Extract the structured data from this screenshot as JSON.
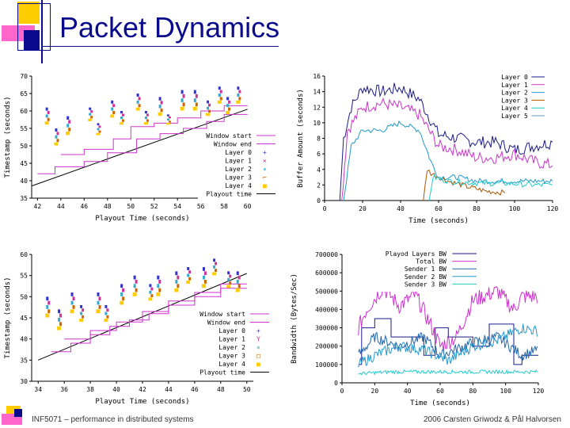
{
  "slide": {
    "title": "Packet Dynamics",
    "footer_left": "INF5071 – performance in distributed systems",
    "footer_right": "2006 Carsten Griwodz & Pål Halvorsen",
    "accent_colors": {
      "orange": "#ffcc00",
      "pink": "#ff66cc",
      "navy": "#0a0a8c"
    }
  },
  "chart_data": [
    {
      "type": "scatter",
      "id": "ts1",
      "xlabel": "Playout Time (seconds)",
      "ylabel": "Timestamp (seconds)",
      "xlim": [
        41.5,
        60.5
      ],
      "ylim": [
        35,
        70
      ],
      "xticks": [
        42,
        44,
        46,
        48,
        50,
        52,
        54,
        56,
        58,
        60
      ],
      "yticks": [
        35,
        40,
        45,
        50,
        55,
        60,
        65,
        70
      ],
      "legend": [
        "Window start",
        "Window end",
        "Layer 0",
        "Layer 1",
        "Layer 2",
        "Layer 3",
        "Layer 4",
        "Playout time"
      ],
      "legend_markers": [
        "line",
        "line",
        "+",
        "×",
        "✶",
        "⌐",
        "■",
        "line"
      ],
      "colors": [
        "#cc33cc",
        "#cc33cc",
        "#3333cc",
        "#cc3399",
        "#33aacc",
        "#cc6600",
        "#ffcc00",
        "#000000"
      ],
      "playout_line": [
        [
          41.5,
          38.5
        ],
        [
          60,
          60.5
        ]
      ],
      "window_start": [
        [
          42,
          42
        ],
        [
          43.5,
          42
        ],
        [
          43.5,
          44
        ],
        [
          46,
          44
        ],
        [
          46,
          45.5
        ],
        [
          48,
          45.5
        ],
        [
          48,
          48
        ],
        [
          50.5,
          48
        ],
        [
          50.5,
          52
        ],
        [
          52.5,
          52
        ],
        [
          52.5,
          53.5
        ],
        [
          54.5,
          53.5
        ],
        [
          54.5,
          55
        ],
        [
          56.5,
          55
        ],
        [
          56.5,
          57
        ],
        [
          58,
          57
        ],
        [
          58,
          59
        ],
        [
          60,
          59
        ]
      ],
      "window_end": [
        [
          44,
          47.5
        ],
        [
          46,
          47.5
        ],
        [
          46,
          49
        ],
        [
          48.5,
          49
        ],
        [
          48.5,
          52
        ],
        [
          50,
          52
        ],
        [
          50,
          55.5
        ],
        [
          52,
          55.5
        ],
        [
          52,
          56.5
        ],
        [
          54,
          56.5
        ],
        [
          54,
          58
        ],
        [
          56,
          58
        ],
        [
          56,
          60
        ],
        [
          58,
          60
        ],
        [
          58,
          61.5
        ],
        [
          60,
          61.5
        ]
      ],
      "packets": [
        {
          "x": 42.8,
          "ymin": 56,
          "ymax": 61
        },
        {
          "x": 43.6,
          "ymin": 50,
          "ymax": 55
        },
        {
          "x": 44.6,
          "ymin": 53,
          "ymax": 58.5
        },
        {
          "x": 46.5,
          "ymin": 57,
          "ymax": 61
        },
        {
          "x": 47.2,
          "ymin": 53,
          "ymax": 56.5
        },
        {
          "x": 48.4,
          "ymin": 58,
          "ymax": 63
        },
        {
          "x": 49.2,
          "ymin": 56,
          "ymax": 60
        },
        {
          "x": 50.6,
          "ymin": 60,
          "ymax": 65
        },
        {
          "x": 51.3,
          "ymin": 56,
          "ymax": 60
        },
        {
          "x": 52.5,
          "ymin": 58.5,
          "ymax": 64
        },
        {
          "x": 53.2,
          "ymin": 56,
          "ymax": 59
        },
        {
          "x": 54.4,
          "ymin": 60,
          "ymax": 66
        },
        {
          "x": 55.5,
          "ymin": 60,
          "ymax": 66
        },
        {
          "x": 56.6,
          "ymin": 58.5,
          "ymax": 63
        },
        {
          "x": 57.6,
          "ymin": 62,
          "ymax": 67
        },
        {
          "x": 58.3,
          "ymin": 59,
          "ymax": 64
        },
        {
          "x": 59.2,
          "ymin": 62,
          "ymax": 67
        }
      ]
    },
    {
      "type": "line",
      "id": "buf",
      "xlabel": "Time (seconds)",
      "ylabel": "Buffer Amount (seconds)",
      "xlim": [
        0,
        120
      ],
      "ylim": [
        0,
        16
      ],
      "xticks": [
        0,
        20,
        40,
        60,
        80,
        100,
        120
      ],
      "yticks": [
        0,
        2,
        4,
        6,
        8,
        10,
        12,
        14,
        16
      ],
      "legend": [
        "Layer 0",
        "Layer 1",
        "Layer 2",
        "Layer 3",
        "Layer 4",
        "Layer 5"
      ],
      "series": [
        {
          "name": "Layer 0",
          "color": "#1a1a8a",
          "start": 8,
          "end": 120,
          "points": [
            [
              8,
              0
            ],
            [
              10,
              8
            ],
            [
              14,
              12
            ],
            [
              20,
              14.5
            ],
            [
              30,
              14
            ],
            [
              40,
              14.5
            ],
            [
              50,
              13
            ],
            [
              60,
              8.5
            ],
            [
              70,
              8
            ],
            [
              80,
              7.5
            ],
            [
              90,
              7.5
            ],
            [
              100,
              6.5
            ],
            [
              110,
              7
            ],
            [
              120,
              7.5
            ]
          ]
        },
        {
          "name": "Layer 1",
          "color": "#cc33cc",
          "start": 9,
          "end": 120,
          "points": [
            [
              9,
              0
            ],
            [
              12,
              9
            ],
            [
              20,
              12
            ],
            [
              30,
              12.5
            ],
            [
              40,
              12
            ],
            [
              50,
              11
            ],
            [
              60,
              7
            ],
            [
              70,
              6.5
            ],
            [
              80,
              5.5
            ],
            [
              90,
              5.5
            ],
            [
              100,
              6
            ],
            [
              110,
              5
            ],
            [
              120,
              4.5
            ]
          ]
        },
        {
          "name": "Layer 2",
          "color": "#2299cc",
          "start": 10,
          "end": 120,
          "points": [
            [
              10,
              0
            ],
            [
              14,
              7
            ],
            [
              20,
              9
            ],
            [
              30,
              9
            ],
            [
              40,
              10
            ],
            [
              50,
              9
            ],
            [
              56,
              5
            ],
            [
              60,
              3
            ],
            [
              70,
              3
            ],
            [
              80,
              2.5
            ],
            [
              90,
              2.5
            ],
            [
              100,
              2.5
            ],
            [
              110,
              2.5
            ],
            [
              120,
              2.5
            ]
          ]
        },
        {
          "name": "Layer 3",
          "color": "#aa5500",
          "start": 52,
          "end": 95,
          "points": [
            [
              52,
              0
            ],
            [
              54,
              4
            ],
            [
              56,
              3.5
            ],
            [
              65,
              2.5
            ],
            [
              75,
              1.8
            ],
            [
              85,
              1.2
            ],
            [
              95,
              1
            ]
          ]
        },
        {
          "name": "Layer 4",
          "color": "#22cccc",
          "start": 55,
          "end": 120,
          "points": [
            [
              55,
              0
            ],
            [
              57,
              3
            ],
            [
              65,
              2.5
            ],
            [
              75,
              2.3
            ],
            [
              85,
              2.2
            ],
            [
              95,
              2.2
            ],
            [
              110,
              2
            ],
            [
              120,
              2
            ]
          ]
        },
        {
          "name": "Layer 5",
          "color": "#6699cc",
          "start": 0,
          "end": 0,
          "points": []
        }
      ]
    },
    {
      "type": "scatter",
      "id": "ts2",
      "xlabel": "Playout Time (seconds)",
      "ylabel": "Timestamp (seconds)",
      "xlim": [
        33.5,
        50.5
      ],
      "ylim": [
        30,
        60
      ],
      "xticks": [
        34,
        36,
        38,
        40,
        42,
        44,
        46,
        48,
        50
      ],
      "yticks": [
        30,
        35,
        40,
        45,
        50,
        55,
        60
      ],
      "legend": [
        "Window start",
        "Window end",
        "Layer 0",
        "Layer 1",
        "Layer 2",
        "Layer 3",
        "Layer 4",
        "Playout time"
      ],
      "legend_markers": [
        "line",
        "line",
        "+",
        "Y",
        "×",
        "□",
        "■",
        "line"
      ],
      "colors": [
        "#cc33cc",
        "#cc33cc",
        "#3333cc",
        "#cc3399",
        "#33aacc",
        "#cc6600",
        "#ffcc00",
        "#000000"
      ],
      "playout_line": [
        [
          34,
          35
        ],
        [
          50,
          55.5
        ]
      ],
      "window_start": [
        [
          35,
          37
        ],
        [
          36.5,
          37
        ],
        [
          36.5,
          39
        ],
        [
          38,
          39
        ],
        [
          38,
          41
        ],
        [
          39.5,
          41
        ],
        [
          39.5,
          43
        ],
        [
          41,
          43
        ],
        [
          41,
          44.5
        ],
        [
          42.5,
          44.5
        ],
        [
          42.5,
          46
        ],
        [
          44,
          46
        ],
        [
          44,
          48
        ],
        [
          46,
          48
        ],
        [
          46,
          50
        ],
        [
          48,
          50
        ],
        [
          48,
          52
        ],
        [
          50,
          52
        ]
      ],
      "window_end": [
        [
          36,
          40
        ],
        [
          38,
          40
        ],
        [
          38,
          42
        ],
        [
          40,
          42
        ],
        [
          40,
          44
        ],
        [
          42,
          44
        ],
        [
          42,
          46.5
        ],
        [
          44,
          46.5
        ],
        [
          44,
          49
        ],
        [
          46,
          49
        ],
        [
          46,
          51
        ],
        [
          48,
          51
        ],
        [
          48,
          53
        ],
        [
          50,
          53
        ]
      ],
      "packets": [
        {
          "x": 34.7,
          "ymin": 45,
          "ymax": 50
        },
        {
          "x": 35.6,
          "ymin": 42,
          "ymax": 47
        },
        {
          "x": 36.6,
          "ymin": 46,
          "ymax": 51
        },
        {
          "x": 37.3,
          "ymin": 44,
          "ymax": 48
        },
        {
          "x": 38.6,
          "ymin": 46,
          "ymax": 51
        },
        {
          "x": 39.2,
          "ymin": 44,
          "ymax": 48
        },
        {
          "x": 40.4,
          "ymin": 48,
          "ymax": 53
        },
        {
          "x": 41.4,
          "ymin": 50,
          "ymax": 55
        },
        {
          "x": 42.6,
          "ymin": 49,
          "ymax": 53
        },
        {
          "x": 43.2,
          "ymin": 50,
          "ymax": 55
        },
        {
          "x": 44.6,
          "ymin": 51,
          "ymax": 56
        },
        {
          "x": 45.5,
          "ymin": 53,
          "ymax": 57
        },
        {
          "x": 46.7,
          "ymin": 52,
          "ymax": 57
        },
        {
          "x": 47.5,
          "ymin": 55,
          "ymax": 59
        },
        {
          "x": 48.6,
          "ymin": 52,
          "ymax": 56
        },
        {
          "x": 49.3,
          "ymin": 51,
          "ymax": 56
        }
      ]
    },
    {
      "type": "line",
      "id": "bw",
      "xlabel": "Time (seconds)",
      "ylabel": "Bandwidth (Bytes/Sec)",
      "xlim": [
        0,
        120
      ],
      "ylim": [
        0,
        700000
      ],
      "xticks": [
        0,
        20,
        40,
        60,
        80,
        100,
        120
      ],
      "yticks": [
        0,
        100000,
        200000,
        300000,
        400000,
        500000,
        600000,
        700000
      ],
      "legend": [
        "Playod Layers BW",
        "Total BW",
        "Sender 1 BW",
        "Sender 2 BW",
        "Sender 3 BW"
      ],
      "series": [
        {
          "name": "Playod Layers BW",
          "color": "#1a1a8a",
          "steps": [
            [
              10,
              100000
            ],
            [
              12,
              300000
            ],
            [
              20,
              350000
            ],
            [
              30,
              250000
            ],
            [
              50,
              150000
            ],
            [
              57,
              300000
            ],
            [
              65,
              250000
            ],
            [
              80,
              200000
            ],
            [
              90,
              320000
            ],
            [
              105,
              100000
            ],
            [
              110,
              150000
            ],
            [
              120,
              150000
            ]
          ]
        },
        {
          "name": "Total BW",
          "color": "#cc33cc",
          "base": [
            [
              10,
              300000
            ],
            [
              15,
              400000
            ],
            [
              25,
              520000
            ],
            [
              35,
              420000
            ],
            [
              45,
              480000
            ],
            [
              55,
              300000
            ],
            [
              60,
              200000
            ],
            [
              70,
              250000
            ],
            [
              80,
              450000
            ],
            [
              95,
              500000
            ],
            [
              105,
              400000
            ],
            [
              110,
              470000
            ],
            [
              120,
              470000
            ]
          ]
        },
        {
          "name": "Sender 1 BW",
          "color": "#2266aa",
          "base": [
            [
              10,
              150000
            ],
            [
              20,
              250000
            ],
            [
              35,
              200000
            ],
            [
              50,
              250000
            ],
            [
              60,
              150000
            ],
            [
              80,
              220000
            ],
            [
              95,
              250000
            ],
            [
              110,
              150000
            ],
            [
              120,
              180000
            ]
          ]
        },
        {
          "name": "Sender 2 BW",
          "color": "#2299cc",
          "base": [
            [
              10,
              100000
            ],
            [
              20,
              150000
            ],
            [
              35,
              200000
            ],
            [
              50,
              180000
            ],
            [
              65,
              120000
            ],
            [
              80,
              200000
            ],
            [
              95,
              230000
            ],
            [
              110,
              300000
            ],
            [
              120,
              280000
            ]
          ]
        },
        {
          "name": "Sender 3 BW",
          "color": "#22cccc",
          "base": [
            [
              10,
              50000
            ],
            [
              30,
              60000
            ],
            [
              50,
              60000
            ],
            [
              70,
              60000
            ],
            [
              90,
              60000
            ],
            [
              110,
              60000
            ],
            [
              120,
              60000
            ]
          ]
        }
      ]
    }
  ]
}
